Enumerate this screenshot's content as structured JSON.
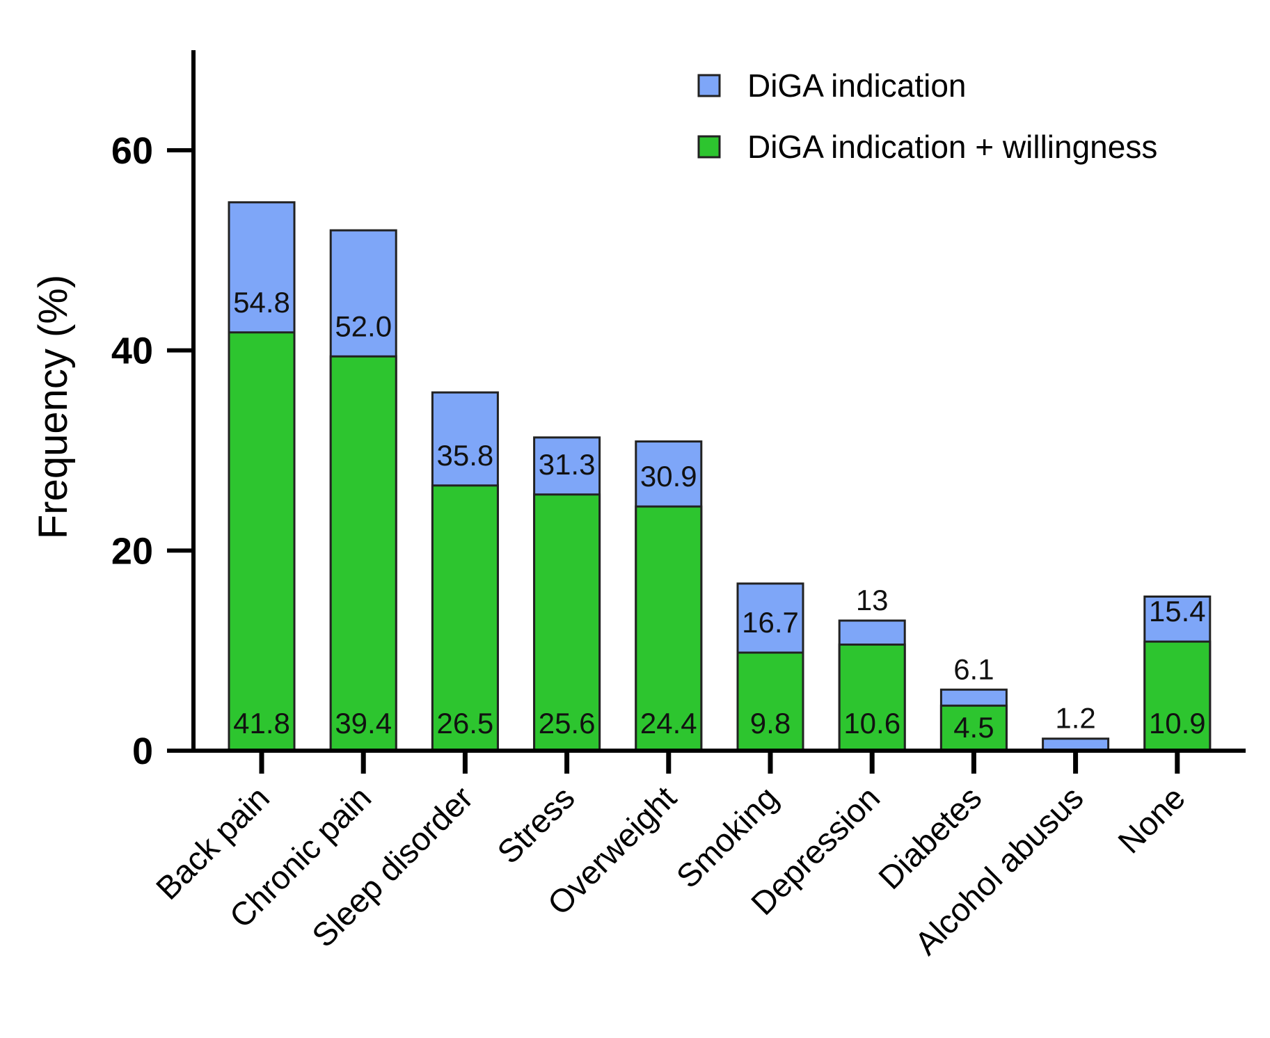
{
  "chart_data": {
    "type": "bar",
    "stacked": false,
    "overlay": true,
    "title": "",
    "xlabel": "",
    "ylabel": "Frequency (%)",
    "ylim": [
      0,
      70
    ],
    "yticks": [
      0,
      20,
      40,
      60
    ],
    "grid": false,
    "legend_position": "top-right",
    "categories": [
      "Back pain",
      "Chronic pain",
      "Sleep disorder",
      "Stress",
      "Overweight",
      "Smoking",
      "Depression",
      "Diabetes",
      "Alcohol abusus",
      "None"
    ],
    "series": [
      {
        "name": "DiGA indication",
        "color": "#7EA6F8",
        "values": [
          54.8,
          52.0,
          35.8,
          31.3,
          30.9,
          16.7,
          13,
          6.1,
          1.2,
          15.4
        ],
        "labels": [
          "54.8",
          "52.0",
          "35.8",
          "31.3",
          "30.9",
          "16.7",
          "13",
          "6.1",
          "1.2",
          "15.4"
        ]
      },
      {
        "name": "DiGA indication + willingness",
        "color": "#2DC52F",
        "values": [
          41.8,
          39.4,
          26.5,
          25.6,
          24.4,
          9.8,
          10.6,
          4.5,
          null,
          10.9
        ],
        "labels": [
          "41.8",
          "39.4",
          "26.5",
          "25.6",
          "24.4",
          "9.8",
          "10.6",
          "4.5",
          "",
          "10.9"
        ]
      }
    ]
  }
}
